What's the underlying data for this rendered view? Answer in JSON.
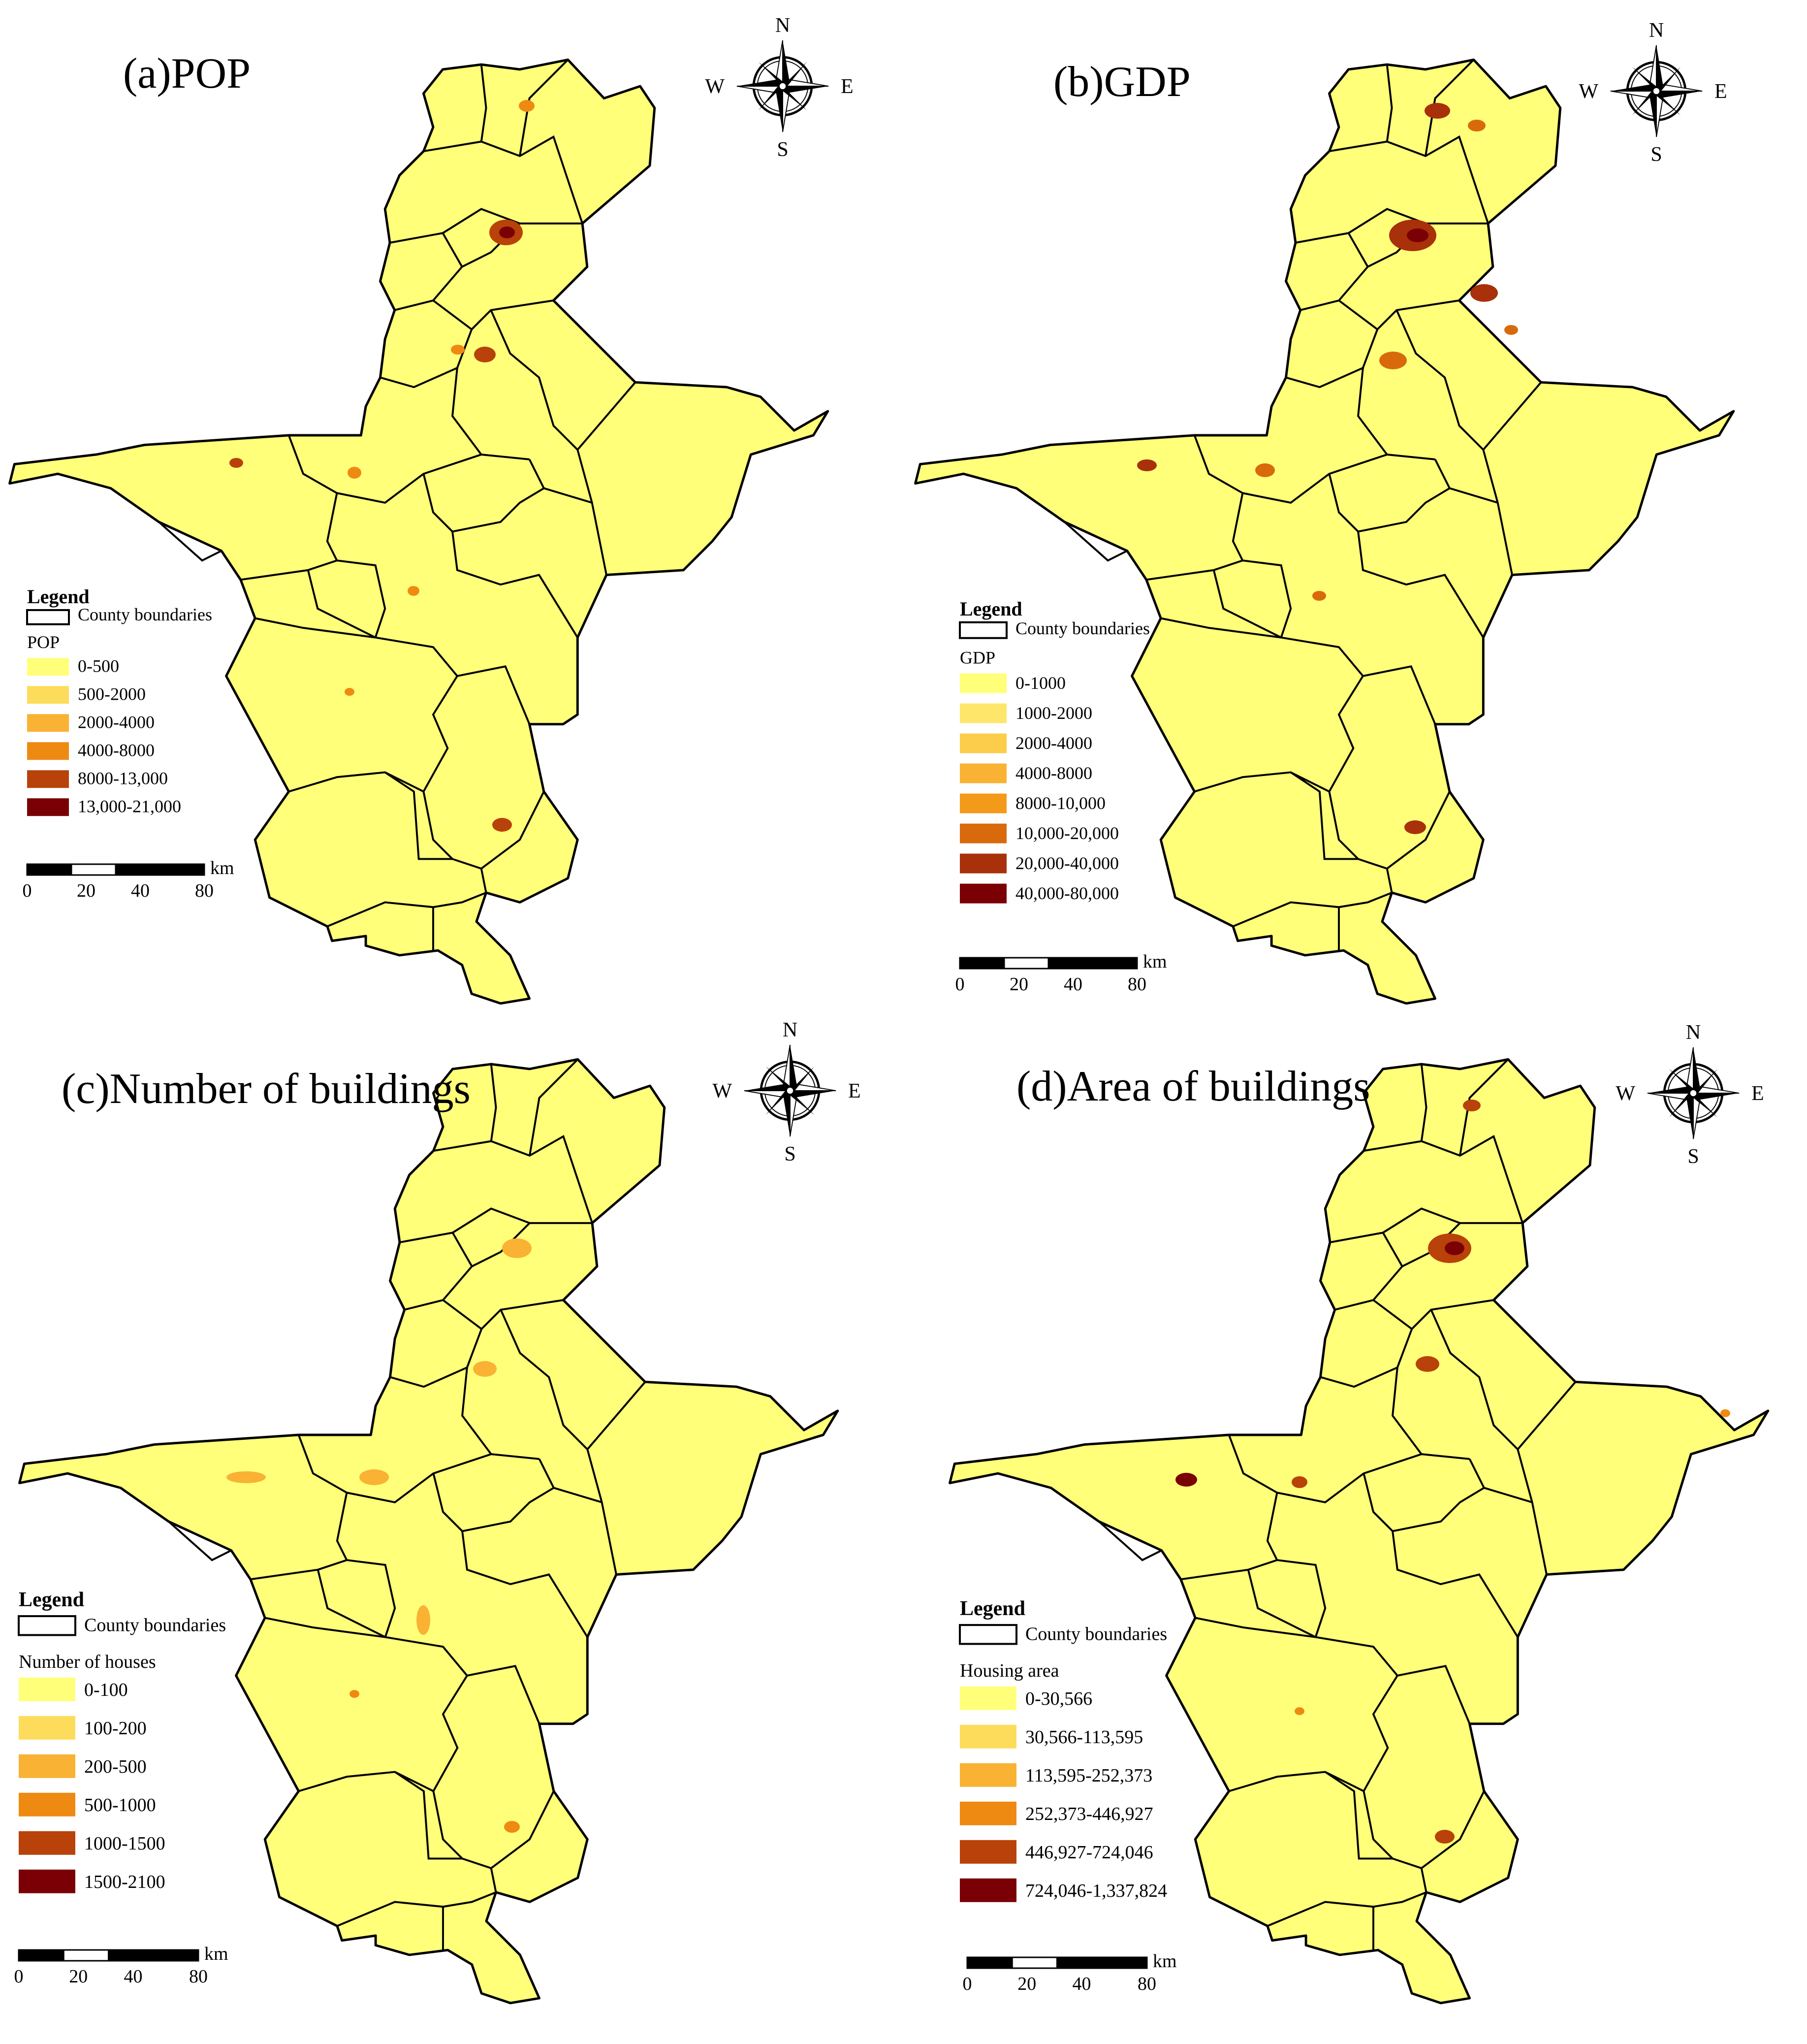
{
  "colors": {
    "base_fill": "#ffff7a",
    "boundary": "#000000"
  },
  "compass": {
    "n": "N",
    "s": "S",
    "e": "E",
    "w": "W"
  },
  "panels": [
    {
      "id": "a",
      "title": "(a)POP",
      "legend_title": "Legend",
      "boundary_label": "County boundaries",
      "variable": "POP",
      "classes": [
        {
          "label": "0-500",
          "color": "#ffff7a"
        },
        {
          "label": "500-2000",
          "color": "#fddc5c"
        },
        {
          "label": "2000-4000",
          "color": "#f9b233"
        },
        {
          "label": "4000-8000",
          "color": "#ee8a12"
        },
        {
          "label": "8000-13,000",
          "color": "#b8420a"
        },
        {
          "label": "13,000-21,000",
          "color": "#7a0006"
        }
      ],
      "scale": {
        "ticks": [
          "0",
          "20",
          "40",
          "80"
        ],
        "unit": "km"
      }
    },
    {
      "id": "b",
      "title": "(b)GDP",
      "legend_title": "Legend",
      "boundary_label": "County boundaries",
      "variable": "GDP",
      "classes": [
        {
          "label": "0-1000",
          "color": "#ffff7a"
        },
        {
          "label": "1000-2000",
          "color": "#fde66a"
        },
        {
          "label": "2000-4000",
          "color": "#fccd4a"
        },
        {
          "label": "4000-8000",
          "color": "#f9b233"
        },
        {
          "label": "8000-10,000",
          "color": "#f49a1a"
        },
        {
          "label": "10,000-20,000",
          "color": "#d86a0c"
        },
        {
          "label": "20,000-40,000",
          "color": "#a8300a"
        },
        {
          "label": "40,000-80,000",
          "color": "#7a0006"
        }
      ],
      "scale": {
        "ticks": [
          "0",
          "20",
          "40",
          "80"
        ],
        "unit": "km"
      }
    },
    {
      "id": "c",
      "title": "(c)Number of buildings",
      "legend_title": "Legend",
      "boundary_label": "County boundaries",
      "variable": "Number of houses",
      "classes": [
        {
          "label": "0-100",
          "color": "#ffff7a"
        },
        {
          "label": "100-200",
          "color": "#fddc5c"
        },
        {
          "label": "200-500",
          "color": "#f9b233"
        },
        {
          "label": "500-1000",
          "color": "#ee8a12"
        },
        {
          "label": "1000-1500",
          "color": "#b8420a"
        },
        {
          "label": "1500-2100",
          "color": "#7a0006"
        }
      ],
      "scale": {
        "ticks": [
          "0",
          "20",
          "40",
          "80"
        ],
        "unit": "km"
      }
    },
    {
      "id": "d",
      "title": "(d)Area of buildings",
      "legend_title": "Legend",
      "boundary_label": "County boundaries",
      "variable": "Housing area",
      "classes": [
        {
          "label": "0-30,566",
          "color": "#ffff7a"
        },
        {
          "label": "30,566-113,595",
          "color": "#fddc5c"
        },
        {
          "label": "113,595-252,373",
          "color": "#f9b233"
        },
        {
          "label": "252,373-446,927",
          "color": "#ee8a12"
        },
        {
          "label": "446,927-724,046",
          "color": "#b8420a"
        },
        {
          "label": "724,046-1,337,824",
          "color": "#7a0006"
        }
      ],
      "scale": {
        "ticks": [
          "0",
          "20",
          "40",
          "80"
        ],
        "unit": "km"
      }
    }
  ]
}
